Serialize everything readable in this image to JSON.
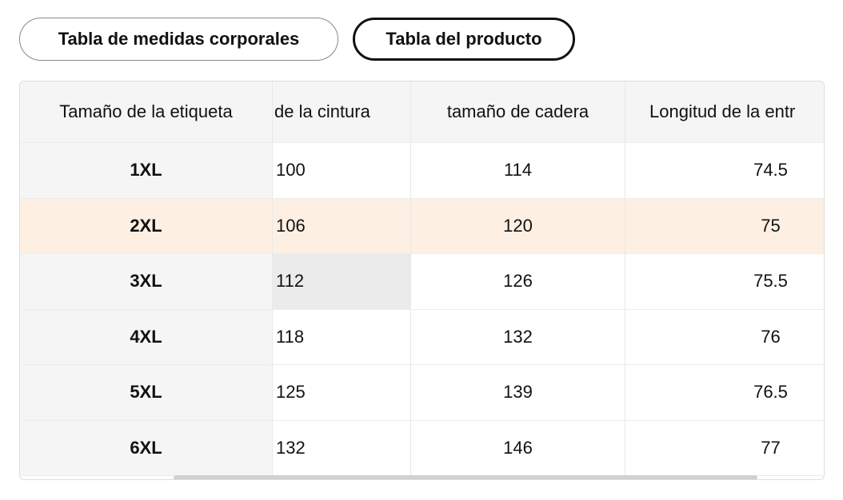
{
  "tabs": [
    "Tabla de medidas corporales",
    "Tabla del producto"
  ],
  "table": {
    "header": [
      "Tamaño de la etiqueta",
      "de la cintura",
      "tamaño de cadera",
      "Longitud de la entr"
    ],
    "rows": [
      [
        "1XL",
        "100",
        "114",
        "74.5"
      ],
      [
        "2XL",
        "106",
        "120",
        "75"
      ],
      [
        "3XL",
        "112",
        "126",
        "75.5"
      ],
      [
        "4XL",
        "118",
        "132",
        "76"
      ],
      [
        "5XL",
        "125",
        "139",
        "76.5"
      ],
      [
        "6XL",
        "132",
        "146",
        "77"
      ]
    ]
  }
}
